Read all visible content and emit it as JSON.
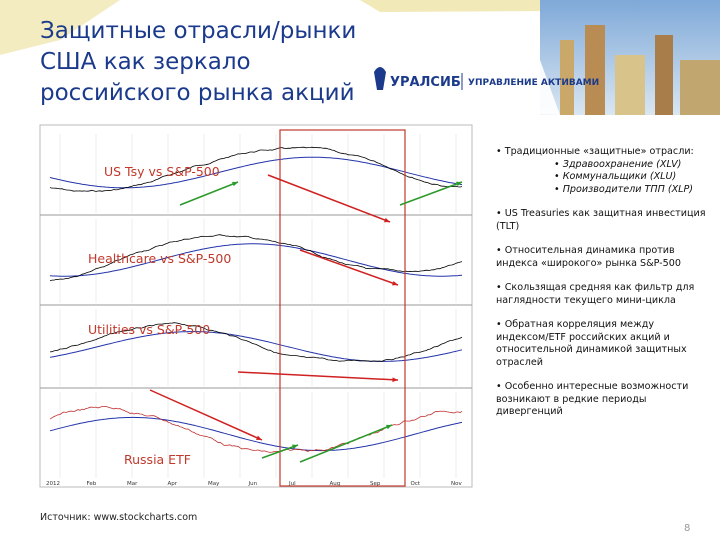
{
  "header": {
    "title": "Защитные отрасли/рынки США как зеркало российского рынка акций",
    "logo": "УРАЛСИБ",
    "logo_subtitle": "УПРАВЛЕНИЕ АКТИВАМИ"
  },
  "chart": {
    "panels": [
      "US Tsy vs S&P-500",
      "Healthcare vs S&P-500",
      "Utilities vs S&P-500",
      "Russia ETF"
    ],
    "months": [
      "2012",
      "Feb",
      "Mar",
      "Apr",
      "May",
      "Jun",
      "Jul",
      "Aug",
      "Sep",
      "Oct",
      "Nov"
    ]
  },
  "bullets": [
    {
      "text": "• Традиционные «защитные» отрасли:",
      "items": [
        "• Здравоохранение (XLV)",
        "• Коммунальщики (XLU)",
        "• Производители ТПП (XLP)"
      ]
    },
    {
      "text": "• US Treasuries как защитная инвестиция (TLT)"
    },
    {
      "text": "• Относительная динамика против индекса «широкого» рынка S&P-500"
    },
    {
      "text": "• Скользящая средняя как фильтр для наглядности текущего мини-цикла"
    },
    {
      "text": "• Обратная корреляция между индексом/ETF российских акций и относительной динамикой защитных отраслей"
    },
    {
      "text": "• Особенно интересные возможности возникают в редкие периоды дивергенций"
    }
  ],
  "footer": {
    "source": "Источник: www.stockcharts.com",
    "page": "8"
  }
}
